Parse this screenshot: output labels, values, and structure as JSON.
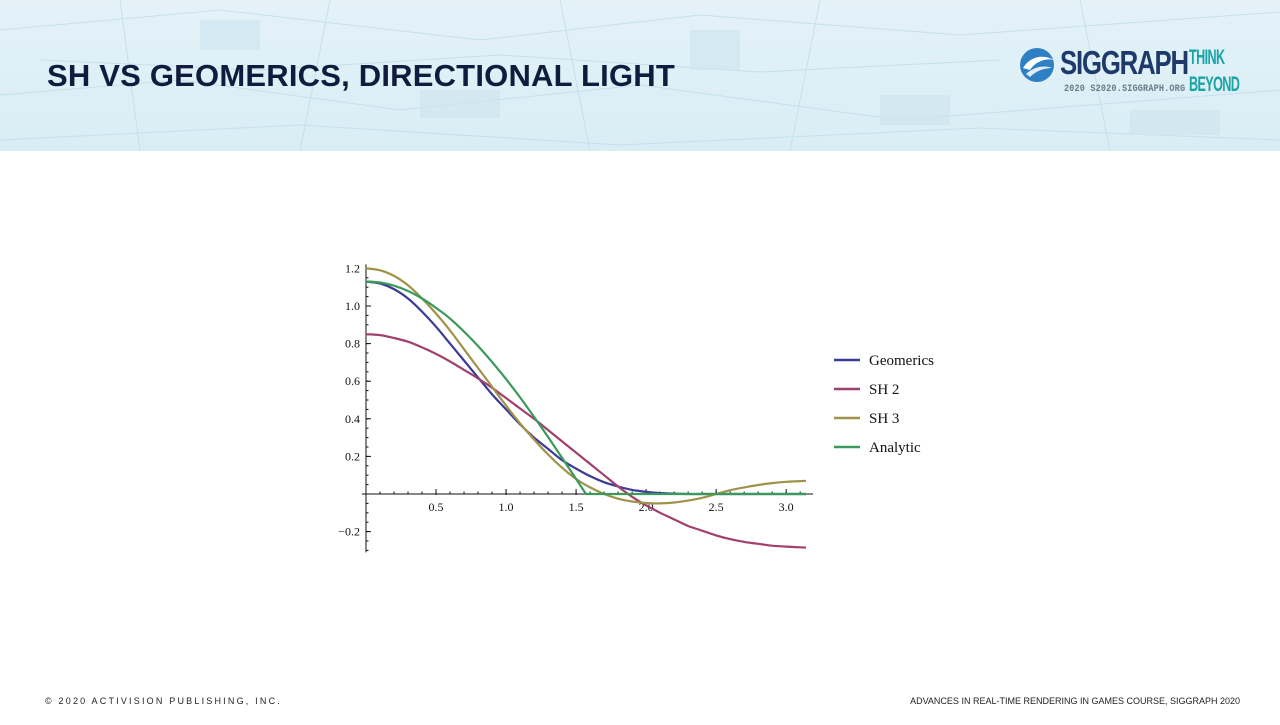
{
  "slide": {
    "title": "SH VS GEOMERICS, DIRECTIONAL LIGHT",
    "footer_left": "© 2020 ACTIVISION PUBLISHING, INC.",
    "footer_right": "ADVANCES IN REAL-TIME RENDERING IN GAMES COURSE, SIGGRAPH 2020"
  },
  "logo": {
    "wordmark": "SIGGRAPH",
    "tagline_top": "THINK",
    "tagline_bottom": "BEYOND",
    "subline": "2020  S2020.SIGGRAPH.ORG",
    "icon": "siggraph-swirl-icon",
    "colors": {
      "blue": "#2f7fc4",
      "navy": "#1e3a6a",
      "teal": "#1aa4a6"
    }
  },
  "chart_data": {
    "type": "line",
    "title": "",
    "xlabel": "",
    "ylabel": "",
    "xlim": [
      0,
      3.1416
    ],
    "ylim": [
      -0.3,
      1.2
    ],
    "x_ticks": [
      0.5,
      1.0,
      1.5,
      2.0,
      2.5,
      3.0
    ],
    "x_tick_labels": [
      "0.5",
      "1.0",
      "1.5",
      "2.0",
      "2.5",
      "3.0"
    ],
    "y_ticks": [
      -0.2,
      0.2,
      0.4,
      0.6,
      0.8,
      1.0,
      1.2
    ],
    "y_tick_labels": [
      "−0.2",
      "0.2",
      "0.4",
      "0.6",
      "0.8",
      "1.0",
      "1.2"
    ],
    "legend_position": "right",
    "grid": false,
    "x": [
      0.0,
      0.1,
      0.2,
      0.3,
      0.4,
      0.5,
      0.6,
      0.7,
      0.8,
      0.9,
      1.0,
      1.1,
      1.2,
      1.3,
      1.4,
      1.5,
      1.6,
      1.7,
      1.8,
      1.9,
      2.0,
      2.1,
      2.2,
      2.3,
      2.4,
      2.5,
      2.6,
      2.7,
      2.8,
      2.9,
      3.0,
      3.1416
    ],
    "series": [
      {
        "name": "Geomerics",
        "color": "#3b3b96",
        "values": [
          1.13,
          1.12,
          1.09,
          1.04,
          0.97,
          0.89,
          0.8,
          0.71,
          0.62,
          0.53,
          0.45,
          0.37,
          0.3,
          0.24,
          0.18,
          0.135,
          0.095,
          0.063,
          0.04,
          0.022,
          0.011,
          0.005,
          0.002,
          0.0,
          0.0,
          0.0,
          0.0,
          0.0,
          0.0,
          0.0,
          0.0,
          0.0
        ]
      },
      {
        "name": "SH 2",
        "color": "#a0406e",
        "values": [
          0.85,
          0.845,
          0.83,
          0.81,
          0.78,
          0.745,
          0.705,
          0.66,
          0.615,
          0.565,
          0.51,
          0.455,
          0.4,
          0.34,
          0.28,
          0.22,
          0.16,
          0.1,
          0.04,
          -0.015,
          -0.06,
          -0.1,
          -0.135,
          -0.17,
          -0.195,
          -0.22,
          -0.24,
          -0.255,
          -0.265,
          -0.275,
          -0.28,
          -0.285
        ]
      },
      {
        "name": "SH 3",
        "color": "#a0924a",
        "values": [
          1.2,
          1.19,
          1.16,
          1.11,
          1.04,
          0.96,
          0.87,
          0.77,
          0.67,
          0.57,
          0.47,
          0.375,
          0.29,
          0.21,
          0.14,
          0.08,
          0.035,
          0.0,
          -0.025,
          -0.04,
          -0.048,
          -0.05,
          -0.045,
          -0.035,
          -0.02,
          0.0,
          0.02,
          0.035,
          0.048,
          0.058,
          0.065,
          0.07
        ]
      },
      {
        "name": "Analytic",
        "color": "#3a9a5a",
        "values": [
          1.13,
          1.125,
          1.108,
          1.08,
          1.04,
          0.99,
          0.933,
          0.864,
          0.787,
          0.702,
          0.611,
          0.514,
          0.41,
          0.303,
          0.192,
          0.08,
          0.0,
          0.0,
          0.0,
          0.0,
          0.0,
          0.0,
          0.0,
          0.0,
          0.0,
          0.0,
          0.0,
          0.0,
          0.0,
          0.0,
          0.0,
          0.0
        ]
      }
    ]
  }
}
